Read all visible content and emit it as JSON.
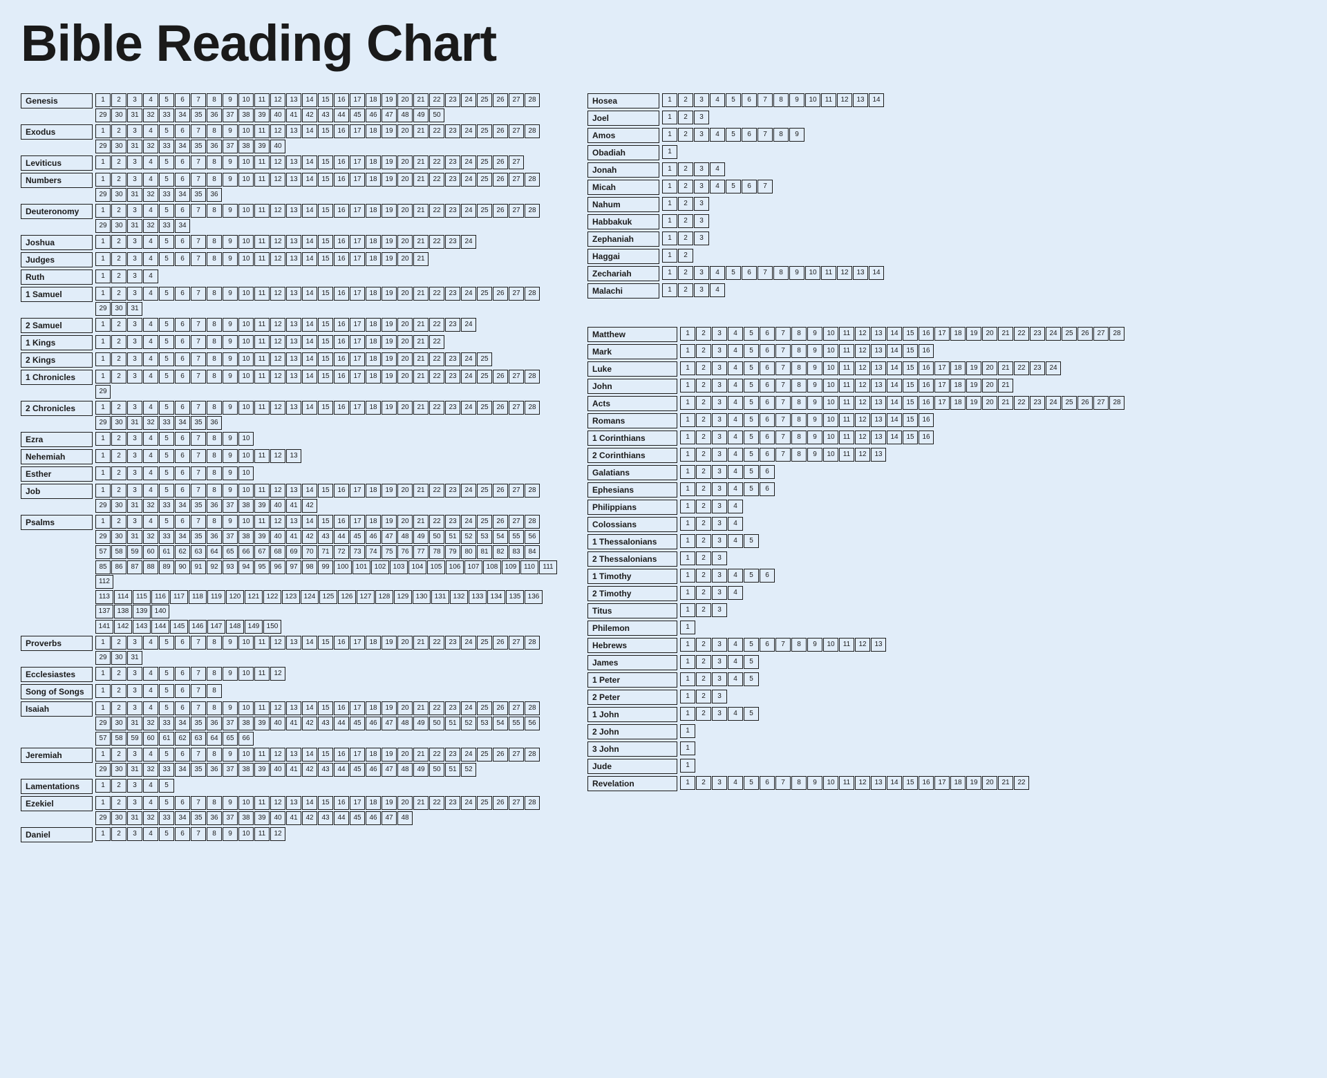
{
  "title": "Bible Reading Chart",
  "style": {
    "background_color": "#e1edf9",
    "border_color": "#1a1a1a",
    "text_color": "#1a1a1a",
    "title_fontsize": 74,
    "book_label_fontsize": 12,
    "chapter_fontsize": 10,
    "chapter_cell_width": 22,
    "chapter_cell_height": 20,
    "book_label_width": 104,
    "book_label_width_wide": 130,
    "chapters_per_row": 28
  },
  "columns": [
    {
      "sections": [
        {
          "books": [
            {
              "name": "Genesis",
              "chapters": 50
            },
            {
              "name": "Exodus",
              "chapters": 40
            },
            {
              "name": "Leviticus",
              "chapters": 27
            },
            {
              "name": "Numbers",
              "chapters": 36
            },
            {
              "name": "Deuteronomy",
              "chapters": 34
            },
            {
              "name": "Joshua",
              "chapters": 24
            },
            {
              "name": "Judges",
              "chapters": 21
            },
            {
              "name": "Ruth",
              "chapters": 4
            },
            {
              "name": "1 Samuel",
              "chapters": 31
            },
            {
              "name": "2 Samuel",
              "chapters": 24
            },
            {
              "name": "1 Kings",
              "chapters": 22
            },
            {
              "name": "2 Kings",
              "chapters": 25
            },
            {
              "name": "1 Chronicles",
              "chapters": 29
            },
            {
              "name": "2 Chronicles",
              "chapters": 36
            },
            {
              "name": "Ezra",
              "chapters": 10
            },
            {
              "name": "Nehemiah",
              "chapters": 13
            },
            {
              "name": "Esther",
              "chapters": 10
            },
            {
              "name": "Job",
              "chapters": 42
            },
            {
              "name": "Psalms",
              "chapters": 150
            },
            {
              "name": "Proverbs",
              "chapters": 31
            },
            {
              "name": "Ecclesiastes",
              "chapters": 12
            },
            {
              "name": "Song of Songs",
              "chapters": 8
            },
            {
              "name": "Isaiah",
              "chapters": 66
            },
            {
              "name": "Jeremiah",
              "chapters": 52
            },
            {
              "name": "Lamentations",
              "chapters": 5
            },
            {
              "name": "Ezekiel",
              "chapters": 48
            },
            {
              "name": "Daniel",
              "chapters": 12
            }
          ]
        }
      ]
    },
    {
      "sections": [
        {
          "books": [
            {
              "name": "Hosea",
              "chapters": 14
            },
            {
              "name": "Joel",
              "chapters": 3
            },
            {
              "name": "Amos",
              "chapters": 9
            },
            {
              "name": "Obadiah",
              "chapters": 1
            },
            {
              "name": "Jonah",
              "chapters": 4
            },
            {
              "name": "Micah",
              "chapters": 7
            },
            {
              "name": "Nahum",
              "chapters": 3
            },
            {
              "name": "Habbakuk",
              "chapters": 3
            },
            {
              "name": "Zephaniah",
              "chapters": 3
            },
            {
              "name": "Haggai",
              "chapters": 2
            },
            {
              "name": "Zechariah",
              "chapters": 14
            },
            {
              "name": "Malachi",
              "chapters": 4
            }
          ]
        },
        {
          "label_wide": true,
          "books": [
            {
              "name": "Matthew",
              "chapters": 28
            },
            {
              "name": "Mark",
              "chapters": 16
            },
            {
              "name": "Luke",
              "chapters": 24
            },
            {
              "name": "John",
              "chapters": 21
            },
            {
              "name": "Acts",
              "chapters": 28
            },
            {
              "name": "Romans",
              "chapters": 16
            },
            {
              "name": "1 Corinthians",
              "chapters": 16
            },
            {
              "name": "2 Corinthians",
              "chapters": 13
            },
            {
              "name": "Galatians",
              "chapters": 6
            },
            {
              "name": "Ephesians",
              "chapters": 6
            },
            {
              "name": "Philippians",
              "chapters": 4
            },
            {
              "name": "Colossians",
              "chapters": 4
            },
            {
              "name": "1 Thessalonians",
              "chapters": 5
            },
            {
              "name": "2 Thessalonians",
              "chapters": 3
            },
            {
              "name": "1 Timothy",
              "chapters": 6
            },
            {
              "name": "2 Timothy",
              "chapters": 4
            },
            {
              "name": "Titus",
              "chapters": 3
            },
            {
              "name": "Philemon",
              "chapters": 1
            },
            {
              "name": "Hebrews",
              "chapters": 13
            },
            {
              "name": "James",
              "chapters": 5
            },
            {
              "name": "1 Peter",
              "chapters": 5
            },
            {
              "name": "2 Peter",
              "chapters": 3
            },
            {
              "name": "1 John",
              "chapters": 5
            },
            {
              "name": "2 John",
              "chapters": 1
            },
            {
              "name": "3 John",
              "chapters": 1
            },
            {
              "name": "Jude",
              "chapters": 1
            },
            {
              "name": "Revelation",
              "chapters": 22
            }
          ]
        }
      ]
    }
  ]
}
